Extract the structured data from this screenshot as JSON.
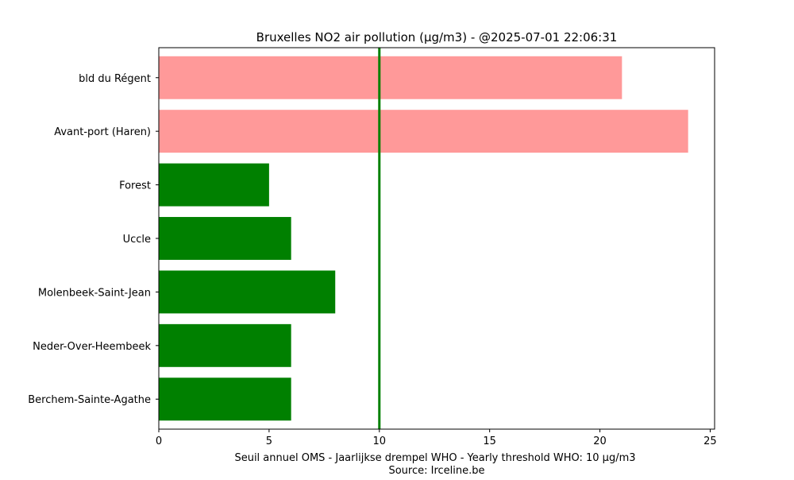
{
  "chart_data": {
    "type": "bar",
    "orientation": "horizontal",
    "title": "Bruxelles NO2 air pollution (µg/m3) - @2025-07-01 22:06:31",
    "xlabel_lines": [
      "Seuil annuel OMS - Jaarlijkse drempel WHO - Yearly threshold WHO: 10 µg/m3",
      "Source: Irceline.be"
    ],
    "ylabel": "",
    "categories": [
      "bld du Régent",
      "Avant-port (Haren)",
      "Forest",
      "Uccle",
      "Molenbeek-Saint-Jean",
      "Neder-Over-Heembeek",
      "Berchem-Sainte-Agathe"
    ],
    "values": [
      21,
      24,
      5,
      6,
      8,
      6,
      6
    ],
    "bar_colors": [
      "#ff9999",
      "#ff9999",
      "#008000",
      "#008000",
      "#008000",
      "#008000",
      "#008000"
    ],
    "threshold": {
      "value": 10,
      "color": "#008000"
    },
    "xlim": [
      0,
      25.2
    ],
    "xticks": [
      0,
      5,
      10,
      15,
      20,
      25
    ],
    "grid": false,
    "legend": false
  }
}
